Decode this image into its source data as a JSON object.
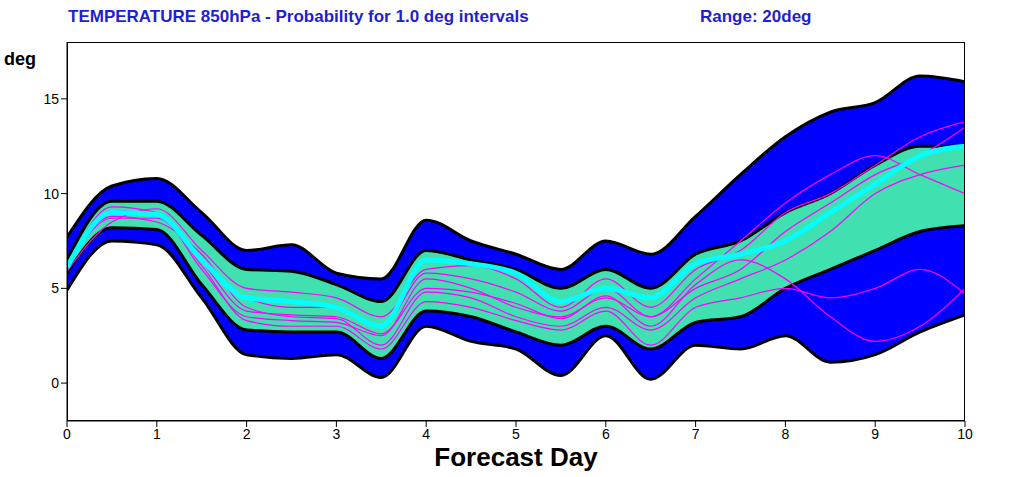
{
  "chart_data": {
    "type": "area",
    "title": "TEMPERATURE 850hPa - Probability for 1.0 deg intervals",
    "subtitle": "Range: 20deg",
    "x_label": "Forecast Day",
    "y_label": "deg",
    "x": [
      0,
      0.5,
      1,
      1.5,
      2,
      2.5,
      3,
      3.5,
      4,
      4.5,
      5,
      5.5,
      6,
      6.5,
      7,
      7.5,
      8,
      8.5,
      9,
      9.5,
      10
    ],
    "xlim": [
      0,
      10
    ],
    "xticks": [
      0,
      1,
      2,
      3,
      4,
      5,
      6,
      7,
      8,
      9,
      10
    ],
    "ylim": [
      -2,
      18
    ],
    "yticks": [
      0,
      5,
      10,
      15
    ],
    "grid": false,
    "series": [
      {
        "type": "range",
        "color": "#0000ff",
        "values": [
          [
            4.9,
            7.7
          ],
          [
            7.5,
            10.4
          ],
          [
            7.3,
            10.8
          ],
          [
            4.5,
            9
          ],
          [
            1.5,
            7
          ],
          [
            1.3,
            7.3
          ],
          [
            1.5,
            5.8
          ],
          [
            0.3,
            5.5
          ],
          [
            3,
            8.6
          ],
          [
            2.2,
            7.5
          ],
          [
            1.8,
            6.8
          ],
          [
            0.4,
            6
          ],
          [
            2.5,
            7.5
          ],
          [
            0.2,
            6.8
          ],
          [
            2,
            8.8
          ],
          [
            1.8,
            11
          ],
          [
            2.5,
            13
          ],
          [
            1.1,
            14.3
          ],
          [
            1.5,
            14.8
          ],
          [
            2.7,
            16.2
          ],
          [
            3.6,
            15.9
          ]
        ]
      },
      {
        "type": "range",
        "color": "#40e0b0",
        "values": [
          [
            5.8,
            6.5
          ],
          [
            8.2,
            9.6
          ],
          [
            8.1,
            9.6
          ],
          [
            5.2,
            7.8
          ],
          [
            2.8,
            6
          ],
          [
            2.7,
            5.9
          ],
          [
            2.7,
            5.2
          ],
          [
            1.3,
            4.3
          ],
          [
            3.8,
            7
          ],
          [
            3.5,
            6.5
          ],
          [
            2.7,
            6
          ],
          [
            2,
            5
          ],
          [
            3,
            6
          ],
          [
            1.8,
            5
          ],
          [
            3.2,
            6.8
          ],
          [
            3.5,
            7.5
          ],
          [
            5,
            9
          ],
          [
            6,
            10
          ],
          [
            7,
            11.5
          ],
          [
            8,
            12.5
          ],
          [
            8.3,
            12.5
          ]
        ]
      },
      {
        "type": "line",
        "color": "#ff00ff",
        "values": [
          6,
          9.3,
          9,
          6,
          3.5,
          3.3,
          3.2,
          2.5,
          5.5,
          5,
          4,
          3.5,
          4.5,
          3.5,
          5,
          6,
          8,
          9.5,
          11,
          12,
          13.5
        ]
      },
      {
        "type": "line",
        "color": "#ff00ff",
        "values": [
          6.2,
          8.8,
          8.5,
          6.8,
          4,
          3.5,
          3.4,
          2,
          4.8,
          4.5,
          3.5,
          3,
          4,
          2.8,
          4.5,
          5.5,
          6.5,
          8,
          10,
          11,
          11.5
        ]
      },
      {
        "type": "line",
        "color": "#ff00ff",
        "values": [
          5.9,
          8.5,
          9.2,
          7,
          5,
          4.8,
          4.5,
          3.5,
          6,
          6.2,
          5.5,
          4,
          5.5,
          4,
          6,
          7,
          9,
          10,
          11.5,
          13,
          13.8
        ]
      },
      {
        "type": "line",
        "color": "#ff00ff",
        "values": [
          6,
          9,
          8.8,
          6.2,
          3.3,
          3,
          3,
          1.8,
          4.3,
          4,
          3.3,
          2.8,
          3.8,
          2,
          4,
          4.5,
          5,
          4.5,
          5,
          6,
          4.7
        ]
      },
      {
        "type": "line",
        "color": "#ff00ff",
        "values": [
          6.1,
          8.7,
          8.7,
          6.5,
          4.5,
          4,
          4,
          3,
          5.8,
          5.5,
          4.8,
          3.8,
          5,
          3.5,
          5.5,
          7.5,
          9.5,
          11,
          12,
          11,
          10
        ]
      },
      {
        "type": "line",
        "color": "#ff00ff",
        "values": [
          6,
          9.1,
          8.9,
          6.4,
          3.8,
          3.6,
          3.5,
          2.6,
          5,
          4.8,
          4.2,
          3.4,
          4.6,
          3,
          5.2,
          6.5,
          5.5,
          3.5,
          2.2,
          3,
          5
        ]
      },
      {
        "type": "line",
        "color": "#00ffff",
        "values": [
          6.1,
          9,
          8.9,
          6.5,
          4.5,
          4.3,
          4,
          3,
          6.5,
          6.3,
          5.8,
          4.3,
          5,
          4.5,
          6.3,
          6.8,
          7.5,
          9,
          10.5,
          12,
          12.5
        ]
      }
    ]
  }
}
